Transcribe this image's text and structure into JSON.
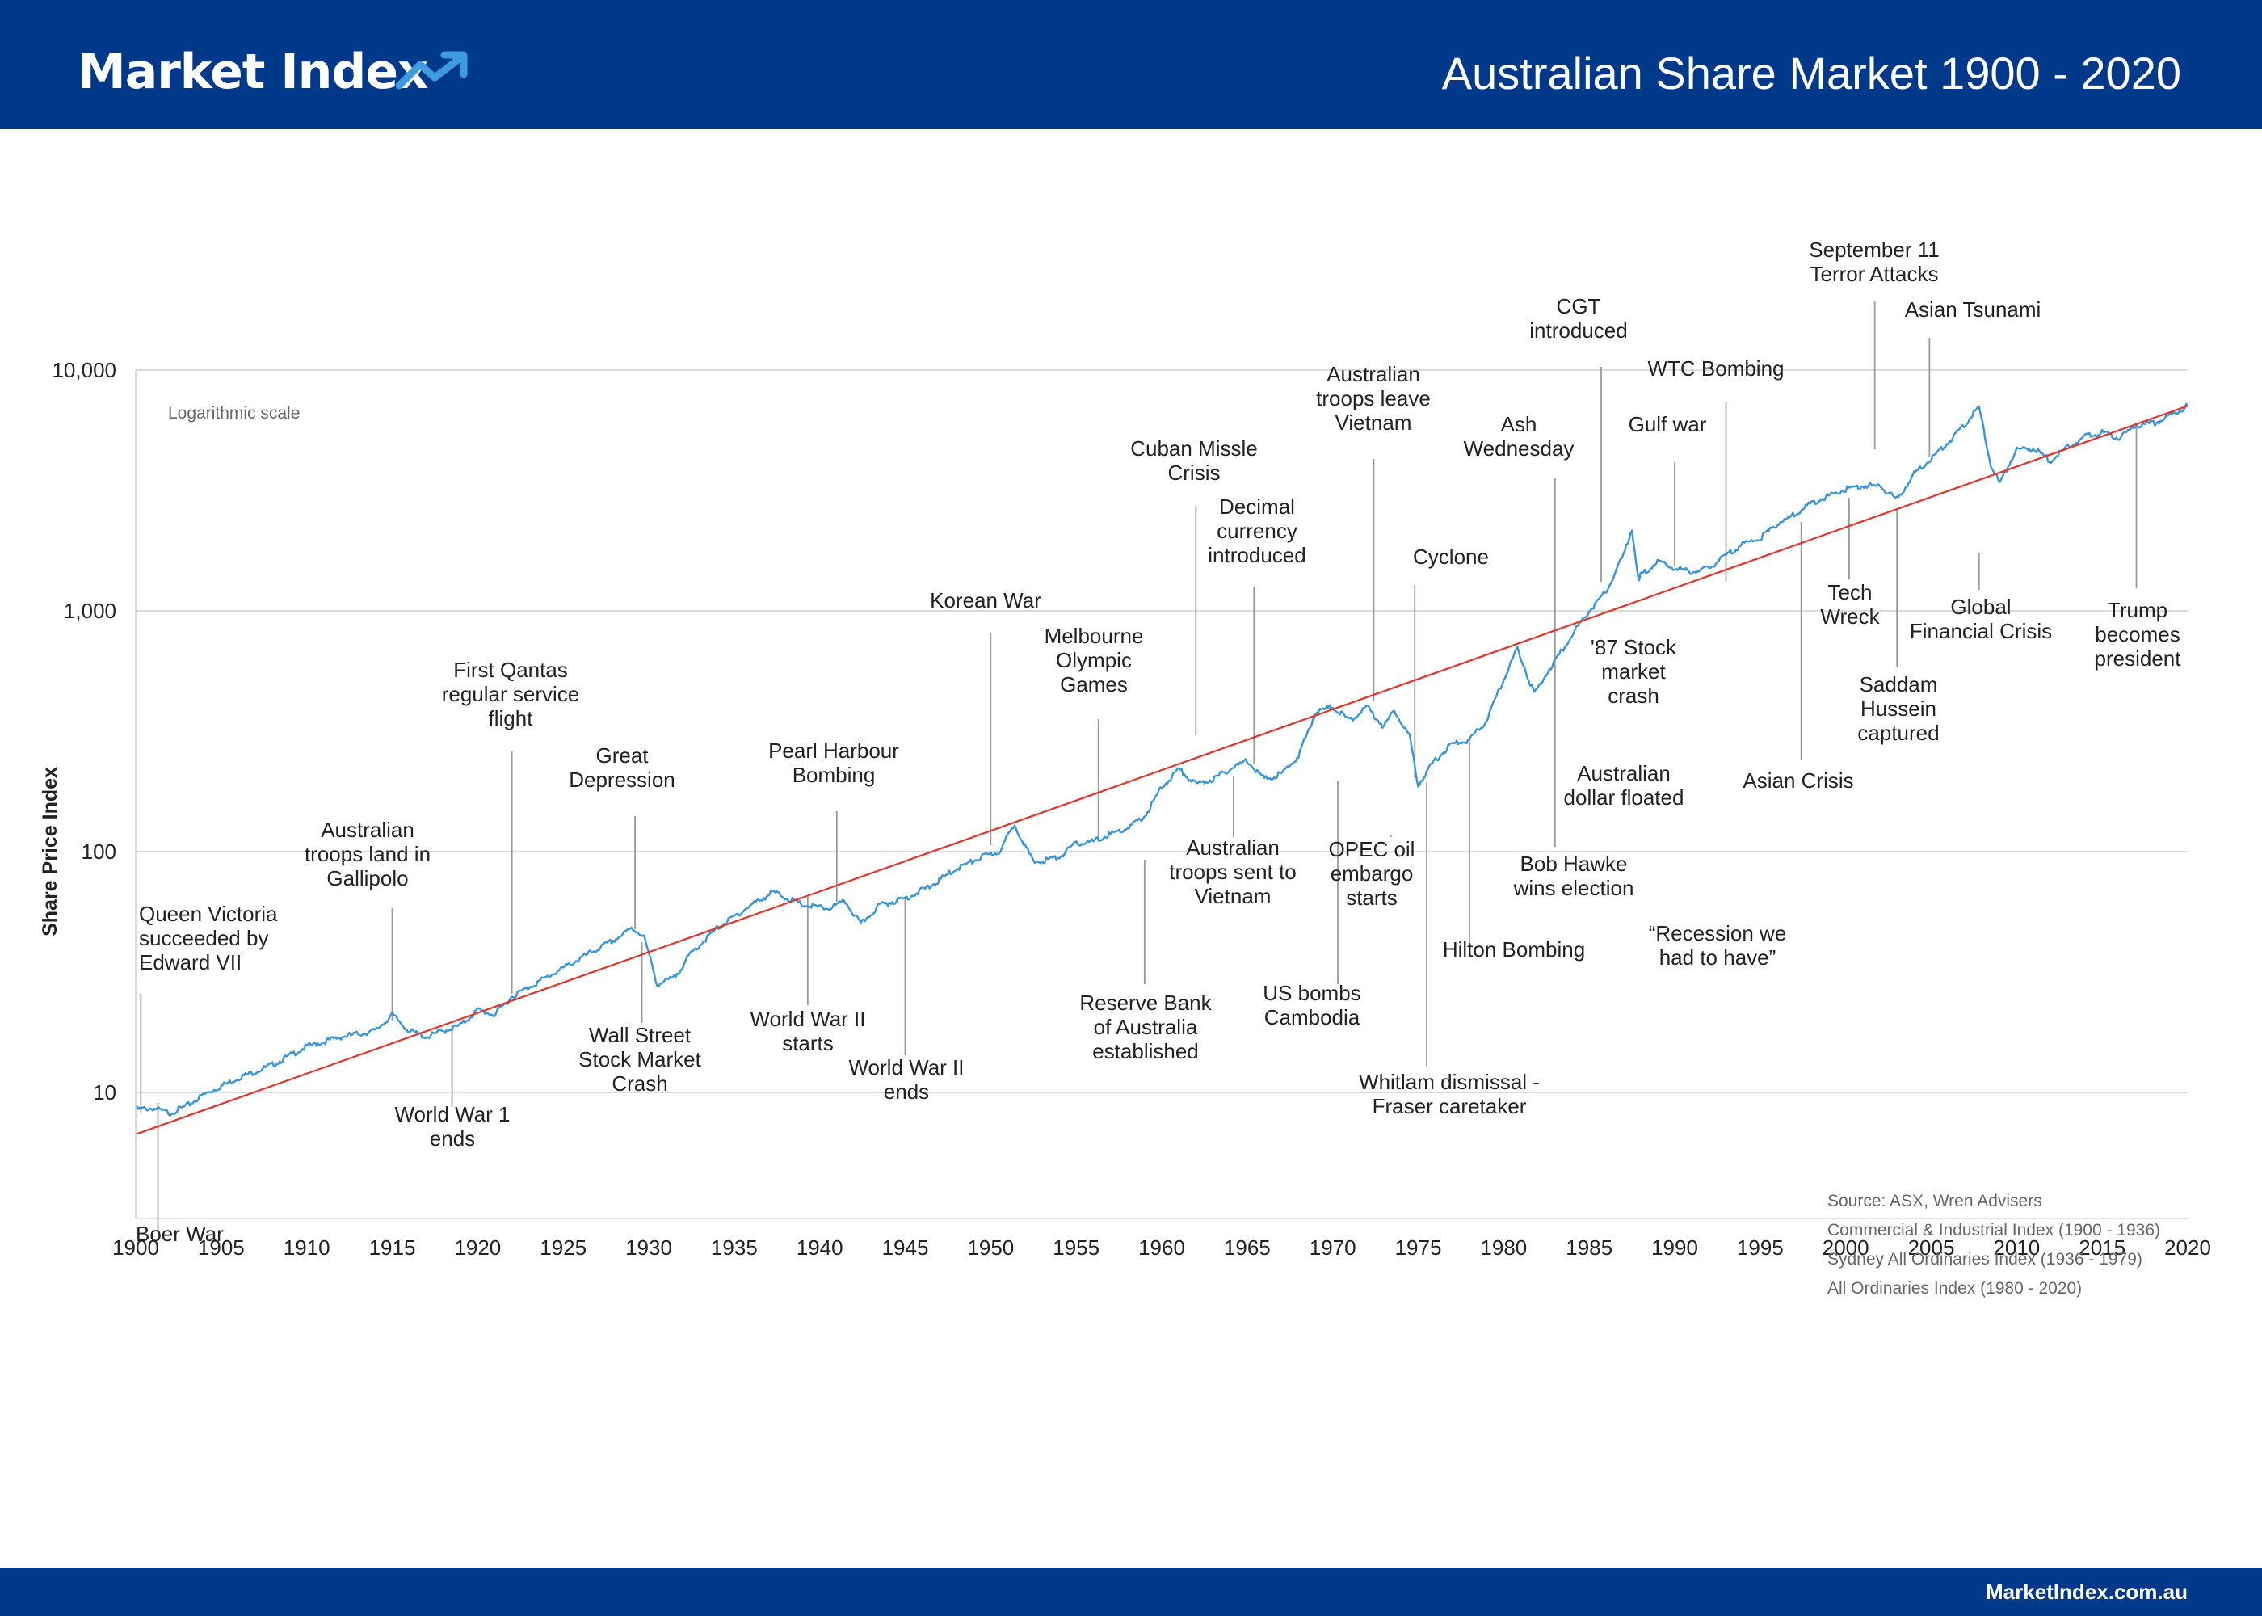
{
  "header": {
    "logo_text": "Market Index",
    "title": "Australian Share Market 1900 - 2020"
  },
  "footer": {
    "url": "MarketIndex.com.au"
  },
  "colors": {
    "brand_blue": "#00388a",
    "logo_accent": "#3d9be0",
    "index_line": "#3a95d6",
    "trend_line": "#e0352b",
    "grid": "#cfcfcf",
    "leader_line": "#9a9a9a"
  },
  "icons": {
    "logo": "trending-up-icon"
  },
  "chart_data": {
    "type": "line",
    "title": "Australian Share Market 1900 - 2020",
    "xlabel": "",
    "ylabel": "Share Price Index",
    "y_scale": "log",
    "scale_note": "Logarithmic scale",
    "xlim": [
      1900,
      2020
    ],
    "ylim": [
      3,
      10000
    ],
    "x_ticks": [
      "1900",
      "1905",
      "1910",
      "1915",
      "1920",
      "1925",
      "1930",
      "1935",
      "1940",
      "1945",
      "1950",
      "1955",
      "1960",
      "1965",
      "1970",
      "1975",
      "1980",
      "1985",
      "1990",
      "1995",
      "2000",
      "2005",
      "2010",
      "2015",
      "2020"
    ],
    "y_ticks": [
      {
        "value": 10,
        "label": "10"
      },
      {
        "value": 100,
        "label": "100"
      },
      {
        "value": 1000,
        "label": "1,000"
      },
      {
        "value": 10000,
        "label": "10,000"
      }
    ],
    "grid": true,
    "series": [
      {
        "role": "index",
        "x": [
          1900,
          1901,
          1902,
          1903,
          1904,
          1906,
          1908,
          1910,
          1912,
          1914,
          1915,
          1916,
          1917,
          1918,
          1919,
          1920,
          1921,
          1922,
          1924,
          1926,
          1928,
          1929,
          1929.7,
          1930.5,
          1931.5,
          1932.5,
          1934,
          1936,
          1937.3,
          1939,
          1940.5,
          1941.5,
          1942.4,
          1943.5,
          1945,
          1946.5,
          1948,
          1949.5,
          1950.5,
          1951.4,
          1952.5,
          1954,
          1955,
          1956,
          1957,
          1958,
          1959,
          1960,
          1961,
          1962,
          1963,
          1964,
          1965,
          1966,
          1967,
          1968,
          1969,
          1970,
          1971,
          1972,
          1973,
          1973.6,
          1974.5,
          1975,
          1976,
          1977,
          1978,
          1979,
          1980,
          1980.8,
          1981.8,
          1982.5,
          1983.5,
          1984,
          1985,
          1986,
          1987,
          1987.5,
          1987.9,
          1988,
          1989,
          1990,
          1991,
          1992,
          1993,
          1994,
          1995,
          1996,
          1997,
          1998,
          1999,
          2000,
          2001,
          2002,
          2003,
          2004,
          2005,
          2006,
          2007,
          2007.8,
          2008.5,
          2009,
          2010,
          2011,
          2012,
          2013,
          2014,
          2015,
          2016,
          2017,
          2018,
          2019,
          2020
        ],
        "y": [
          8.5,
          8.6,
          8.2,
          8.8,
          9.8,
          11.5,
          13,
          15.5,
          17,
          18,
          21,
          18,
          17,
          18,
          19,
          22,
          21,
          25,
          30,
          36,
          43,
          48,
          45,
          28,
          30,
          38,
          48,
          60,
          68,
          60,
          58,
          62,
          50,
          60,
          64,
          72,
          85,
          95,
          100,
          130,
          90,
          95,
          108,
          110,
          118,
          125,
          140,
          185,
          220,
          190,
          200,
          220,
          240,
          200,
          210,
          250,
          380,
          400,
          350,
          400,
          330,
          390,
          300,
          190,
          240,
          280,
          290,
          350,
          520,
          700,
          450,
          550,
          700,
          800,
          1000,
          1200,
          1700,
          2200,
          1300,
          1400,
          1600,
          1500,
          1450,
          1500,
          1700,
          1900,
          2000,
          2300,
          2500,
          2800,
          3000,
          3200,
          3300,
          3300,
          2900,
          3700,
          4300,
          5000,
          6000,
          7000,
          4000,
          3400,
          4700,
          4700,
          4200,
          4800,
          5300,
          5500,
          5200,
          5900,
          6000,
          6500,
          7100
        ]
      },
      {
        "role": "trend",
        "x": [
          1900,
          2020
        ],
        "y": [
          6.7,
          7100
        ]
      }
    ],
    "annotations": [
      {
        "label": [
          "Queen Victoria",
          "succeeded by",
          "Edward VII"
        ],
        "year": 1900.3
      },
      {
        "label": [
          "Boer War"
        ],
        "year": 1901.3
      },
      {
        "label": [
          "Australian",
          "troops land in",
          "Gallipolo"
        ],
        "year": 1915
      },
      {
        "label": [
          "World War 1",
          "ends"
        ],
        "year": 1918.5
      },
      {
        "label": [
          "First Qantas",
          "regular service",
          "flight"
        ],
        "year": 1922
      },
      {
        "label": [
          "Great",
          "Depression"
        ],
        "year": 1929.2
      },
      {
        "label": [
          "Wall Street",
          "Stock Market",
          "Crash"
        ],
        "year": 1929.6
      },
      {
        "label": [
          "World War II",
          "starts"
        ],
        "year": 1939.3
      },
      {
        "label": [
          "Pearl Harbour",
          "Bombing"
        ],
        "year": 1941
      },
      {
        "label": [
          "World War II",
          "ends"
        ],
        "year": 1945
      },
      {
        "label": [
          "Korean War"
        ],
        "year": 1950
      },
      {
        "label": [
          "Melbourne",
          "Olympic",
          "Games"
        ],
        "year": 1956.3
      },
      {
        "label": [
          "Reserve Bank",
          "of Australia",
          "established"
        ],
        "year": 1959
      },
      {
        "label": [
          "Cuban Missle",
          "Crisis"
        ],
        "year": 1962
      },
      {
        "label": [
          "Australian",
          "troops sent to",
          "Vietnam"
        ],
        "year": 1964.2
      },
      {
        "label": [
          "Decimal",
          "currency",
          "introduced"
        ],
        "year": 1965.4
      },
      {
        "label": [
          "US bombs",
          "Cambodia"
        ],
        "year": 1970.3
      },
      {
        "label": [
          "Australian",
          "troops leave",
          "Vietnam"
        ],
        "year": 1972.4
      },
      {
        "label": [
          "OPEC oil",
          "embargo",
          "starts"
        ],
        "year": 1973.4
      },
      {
        "label": [
          "Cyclone"
        ],
        "year": 1974.8
      },
      {
        "label": [
          "Whitlam dismissal -",
          "Fraser caretaker"
        ],
        "year": 1975.5
      },
      {
        "label": [
          "Hilton Bombing"
        ],
        "year": 1978
      },
      {
        "label": [
          "Ash",
          "Wednesday"
        ],
        "year": 1983
      },
      {
        "label": [
          "Bob Hawke",
          "wins election"
        ],
        "year": 1983
      },
      {
        "label": [
          "Australian",
          "dollar floated"
        ],
        "year": 1983.9
      },
      {
        "label": [
          "CGT",
          "introduced"
        ],
        "year": 1985.7
      },
      {
        "label": [
          "'87 Stock",
          "market",
          "crash"
        ],
        "year": 1987.5
      },
      {
        "label": [
          "Gulf war"
        ],
        "year": 1990
      },
      {
        "label": [
          "“Recession we",
          "had to have”"
        ],
        "year": 1990.9
      },
      {
        "label": [
          "WTC Bombing"
        ],
        "year": 1993
      },
      {
        "label": [
          "Asian Crisis"
        ],
        "year": 1997.4
      },
      {
        "label": [
          "Tech",
          "Wreck"
        ],
        "year": 2000.2
      },
      {
        "label": [
          "September 11",
          "Terror Attacks"
        ],
        "year": 2001.7
      },
      {
        "label": [
          "Saddam",
          "Hussein",
          "captured"
        ],
        "year": 2003
      },
      {
        "label": [
          "Asian Tsunami"
        ],
        "year": 2004.9
      },
      {
        "label": [
          "Global",
          "Financial Crisis"
        ],
        "year": 2007.8
      },
      {
        "label": [
          "Trump",
          "becomes",
          "president"
        ],
        "year": 2017
      }
    ],
    "source_lines": [
      "Source: ASX, Wren Advisers",
      "Commercial & Industrial Index (1900 - 1936)",
      "Sydney All Ordinaries Index (1936 - 1979)",
      "All Ordinaries Index (1980 - 2020)"
    ]
  }
}
